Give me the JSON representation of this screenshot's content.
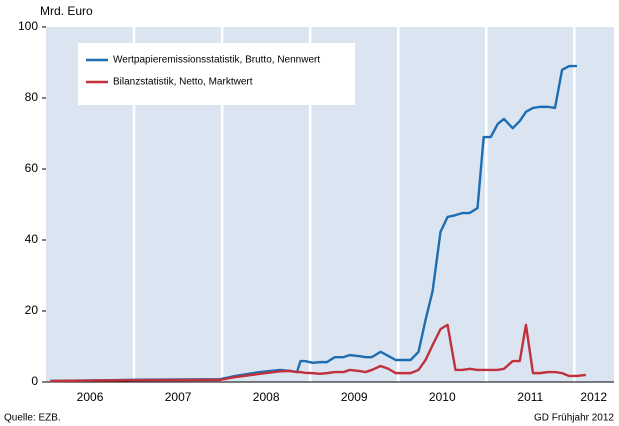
{
  "chart_data": {
    "type": "line",
    "y_unit_label": "Mrd. Euro",
    "source": "Quelle: EZB.",
    "footer_right": "GD Frühjahr 2012",
    "x": [
      2006.05,
      2006.95,
      2007.98,
      2008.15,
      2008.43,
      2008.66,
      2008.77,
      2008.85,
      2008.89,
      2008.94,
      2009.03,
      2009.11,
      2009.19,
      2009.28,
      2009.38,
      2009.45,
      2009.55,
      2009.63,
      2009.7,
      2009.8,
      2009.89,
      2009.97,
      2010.06,
      2010.14,
      2010.23,
      2010.31,
      2010.39,
      2010.48,
      2010.56,
      2010.65,
      2010.73,
      2010.81,
      2010.9,
      2010.97,
      2011.05,
      2011.13,
      2011.2,
      2011.3,
      2011.38,
      2011.45,
      2011.53,
      2011.61,
      2011.7,
      2011.78,
      2011.86,
      2011.94,
      2012.03,
      2012.13
    ],
    "series": [
      {
        "name": "Wertpapieremissionsstatistik, Brutto, Nennwert",
        "color": "#1f6db1",
        "values": [
          0.3,
          0.6,
          0.8,
          1.7,
          2.8,
          3.4,
          3.1,
          2.8,
          5.9,
          5.9,
          5.4,
          5.6,
          5.6,
          7.0,
          7.0,
          7.6,
          7.3,
          7.0,
          7.0,
          8.5,
          7.3,
          6.2,
          6.2,
          6.2,
          8.5,
          17.5,
          25.6,
          42.3,
          46.5,
          47.0,
          47.6,
          47.6,
          49.0,
          69.0,
          69.0,
          72.7,
          74.1,
          71.5,
          73.5,
          76.1,
          77.2,
          77.5,
          77.5,
          77.2,
          87.9,
          89.0,
          89.0,
          null
        ]
      },
      {
        "name": "Bilanzstatistik, Netto, Marktwert",
        "color": "#c0303d",
        "values": [
          0.3,
          0.5,
          0.6,
          1.4,
          2.3,
          3.0,
          3.1,
          2.8,
          2.8,
          2.6,
          2.5,
          2.3,
          2.5,
          2.8,
          2.8,
          3.4,
          3.1,
          2.8,
          3.4,
          4.5,
          3.7,
          2.5,
          2.5,
          2.5,
          3.4,
          6.2,
          10.4,
          14.9,
          16.1,
          3.4,
          3.4,
          3.7,
          3.4,
          3.4,
          3.4,
          3.4,
          3.7,
          5.9,
          5.9,
          16.1,
          2.5,
          2.5,
          2.8,
          2.8,
          2.5,
          1.7,
          1.7,
          2.0
        ]
      }
    ],
    "xlim": [
      2006,
      2012.45
    ],
    "xticks": [
      {
        "value": 2006.5,
        "label": "2006"
      },
      {
        "value": 2007.5,
        "label": "2007"
      },
      {
        "value": 2008.5,
        "label": "2008"
      },
      {
        "value": 2009.5,
        "label": "2009"
      },
      {
        "value": 2010.5,
        "label": "2010"
      },
      {
        "value": 2011.5,
        "label": "2011"
      },
      {
        "value": 2012.22,
        "label": "2012"
      }
    ],
    "x_gridlines": [
      2007,
      2008,
      2009,
      2010,
      2011,
      2012
    ],
    "ylim": [
      0,
      100
    ],
    "yticks": [
      0,
      20,
      40,
      60,
      80,
      100
    ],
    "background": "#dbe5f1"
  }
}
